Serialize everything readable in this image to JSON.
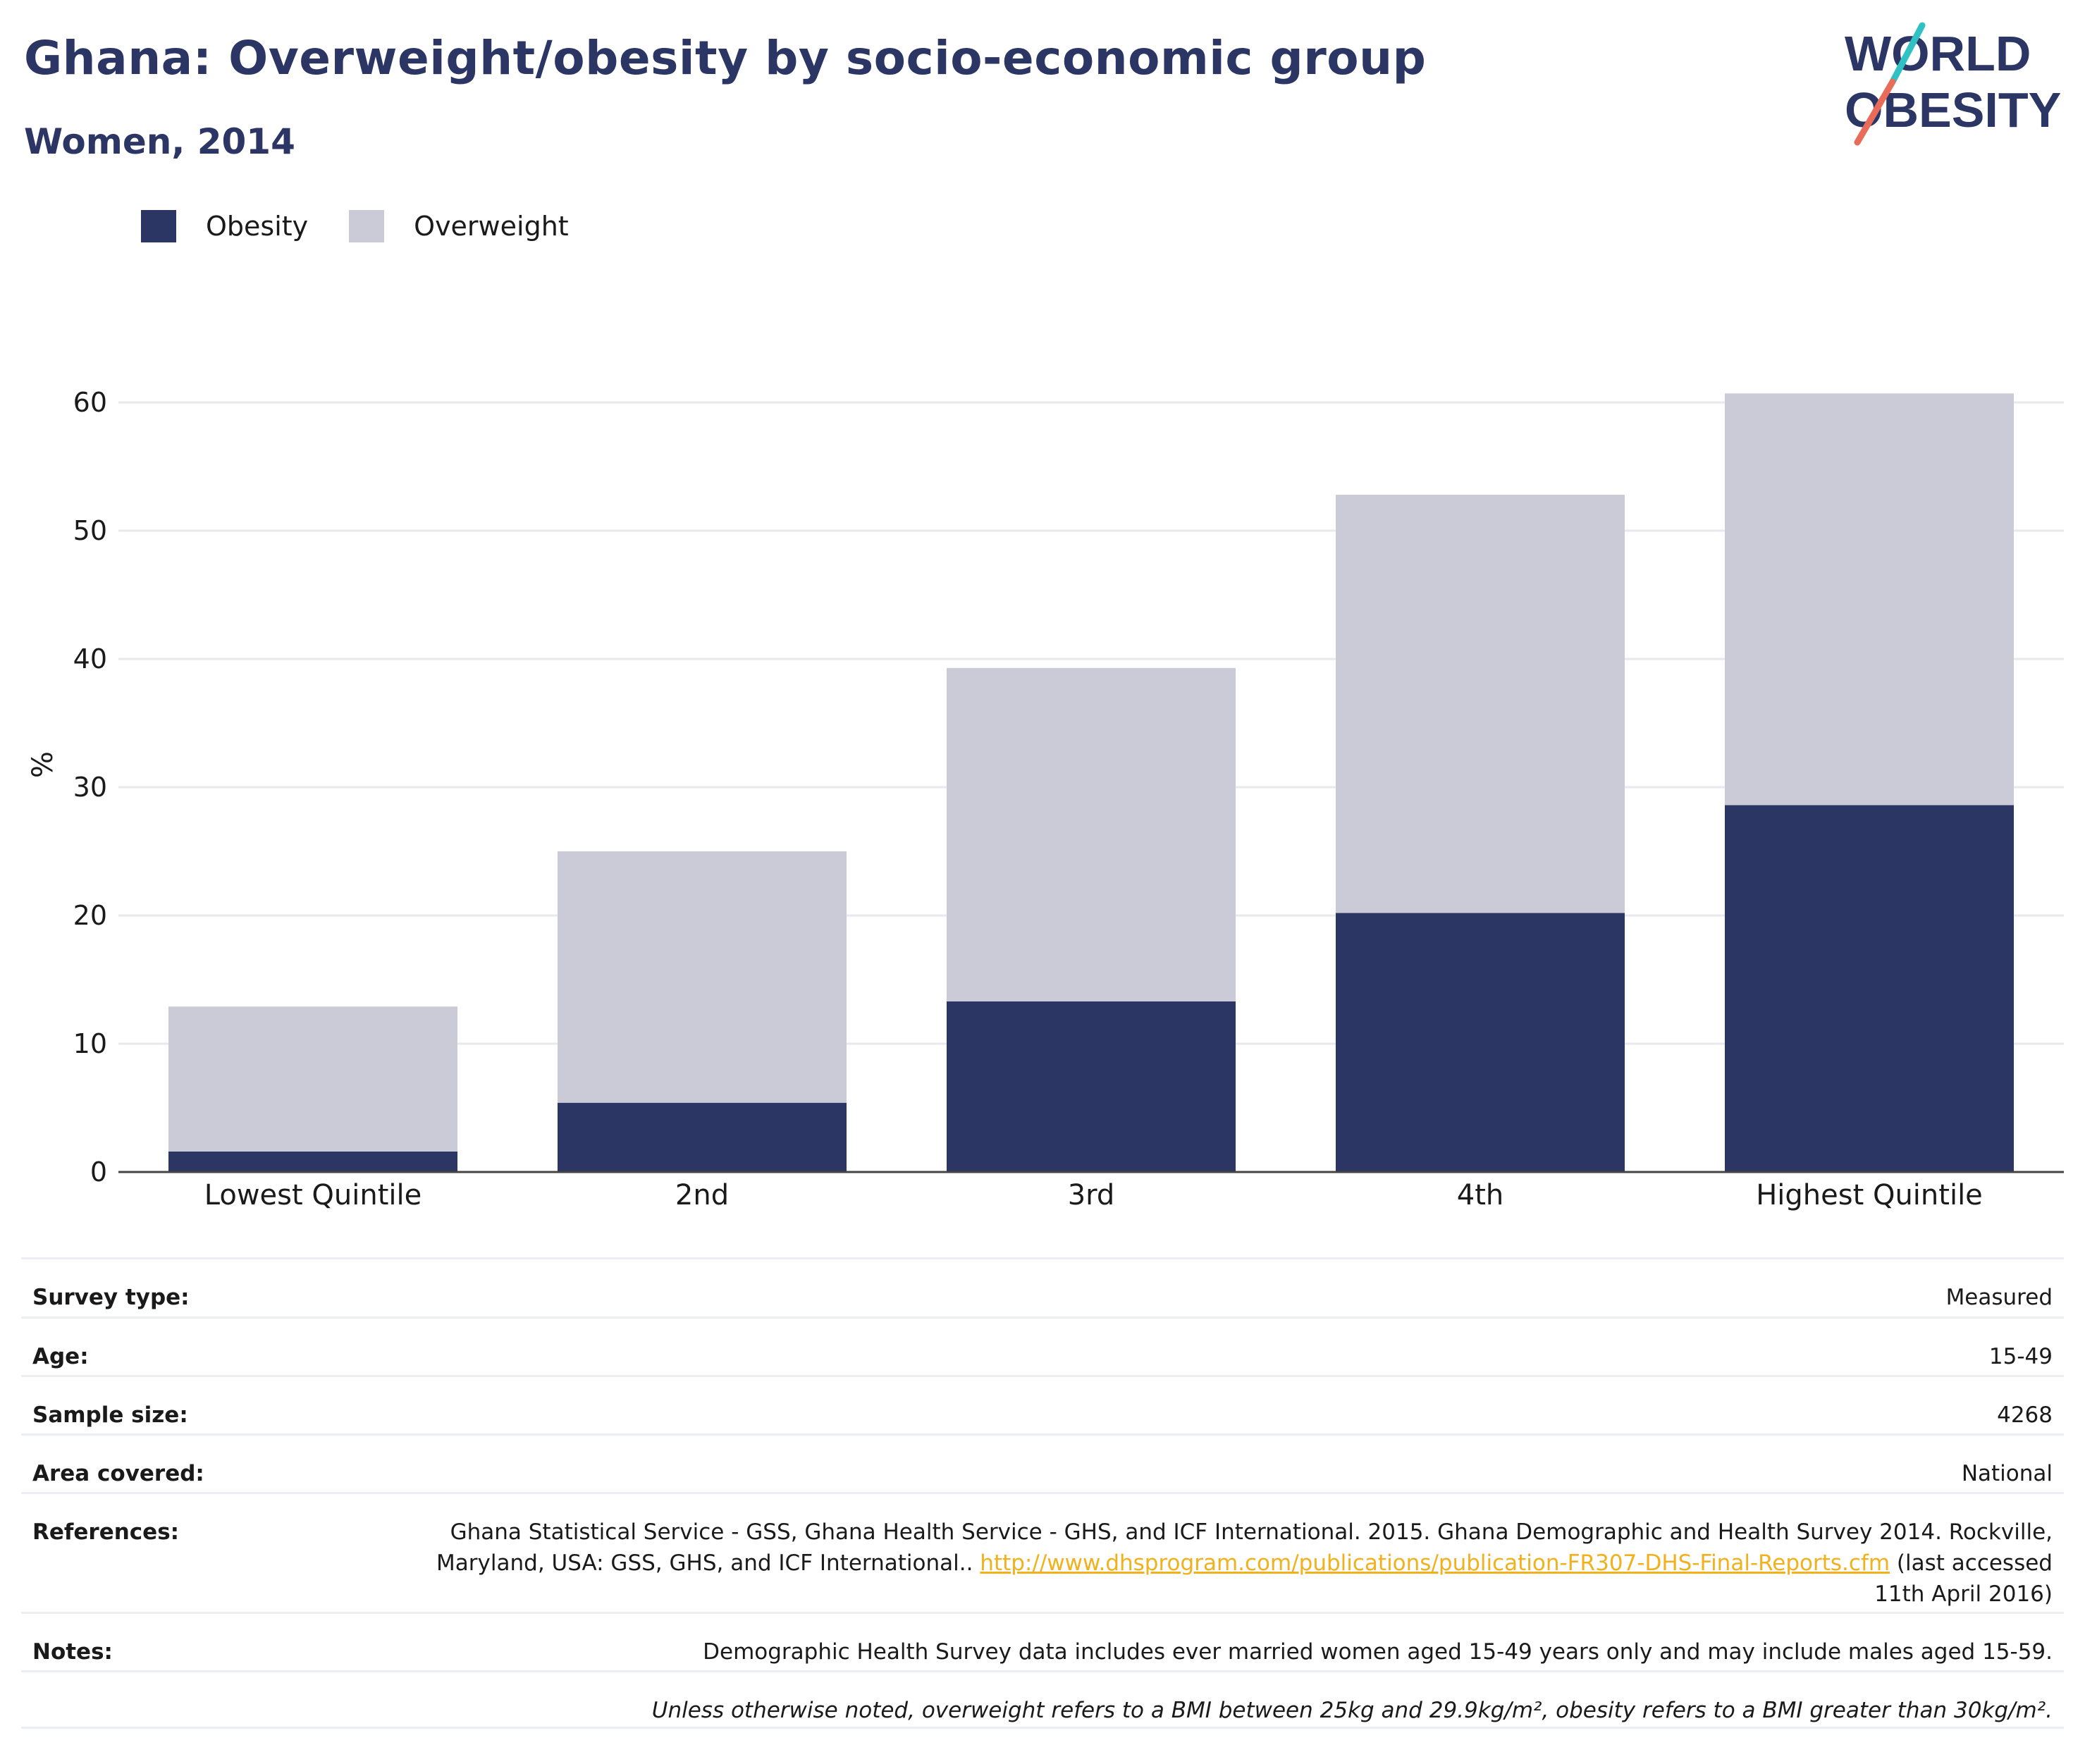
{
  "header": {
    "title": "Ghana: Overweight/obesity by socio-economic group",
    "subtitle": "Women, 2014",
    "logo_line1": "WORLD",
    "logo_line2": "OBESITY"
  },
  "colors": {
    "obesity": "#2b3664",
    "overweight": "#cacbd7",
    "title": "#2b3664",
    "link": "#f2b11c",
    "logo_teal": "#2fc1c4",
    "logo_coral": "#e96c5a"
  },
  "legend": [
    {
      "label": "Obesity",
      "color": "#2b3664"
    },
    {
      "label": "Overweight",
      "color": "#cacbd7"
    }
  ],
  "chart_data": {
    "type": "bar",
    "stacked": true,
    "categories": [
      "Lowest Quintile",
      "2nd",
      "3rd",
      "4th",
      "Highest Quintile"
    ],
    "series": [
      {
        "name": "Obesity",
        "values": [
          1.6,
          5.4,
          13.3,
          20.2,
          28.6
        ]
      },
      {
        "name": "Overweight",
        "values": [
          11.3,
          19.6,
          26.0,
          32.6,
          32.1
        ]
      }
    ],
    "ylabel": "%",
    "ylim": [
      0,
      63
    ],
    "yticks": [
      0,
      10,
      20,
      30,
      40,
      50,
      60
    ],
    "grid": true,
    "legend_position": "top-left"
  },
  "meta": {
    "survey_type": {
      "label": "Survey type:",
      "value": "Measured"
    },
    "age": {
      "label": "Age:",
      "value": "15-49"
    },
    "sample_size": {
      "label": "Sample size:",
      "value": "4268"
    },
    "area_covered": {
      "label": "Area covered:",
      "value": "National"
    },
    "references": {
      "label": "References:",
      "text": "Ghana Statistical Service - GSS, Ghana Health Service - GHS, and ICF International. 2015. Ghana Demographic and Health Survey 2014. Rockville, Maryland, USA: GSS, GHS, and ICF International.. ",
      "link": "http://www.dhsprogram.com/publications/publication-FR307-DHS-Final-Reports.cfm",
      "suffix": " (last accessed 11th April 2016)"
    },
    "notes": {
      "label": "Notes:",
      "value": "Demographic Health Survey data includes ever married women aged 15-49 years only and may include males aged 15-59."
    },
    "bmi_note": "Unless otherwise noted, overweight refers to a BMI between 25kg and 29.9kg/m², obesity refers to a BMI greater than 30kg/m²."
  }
}
